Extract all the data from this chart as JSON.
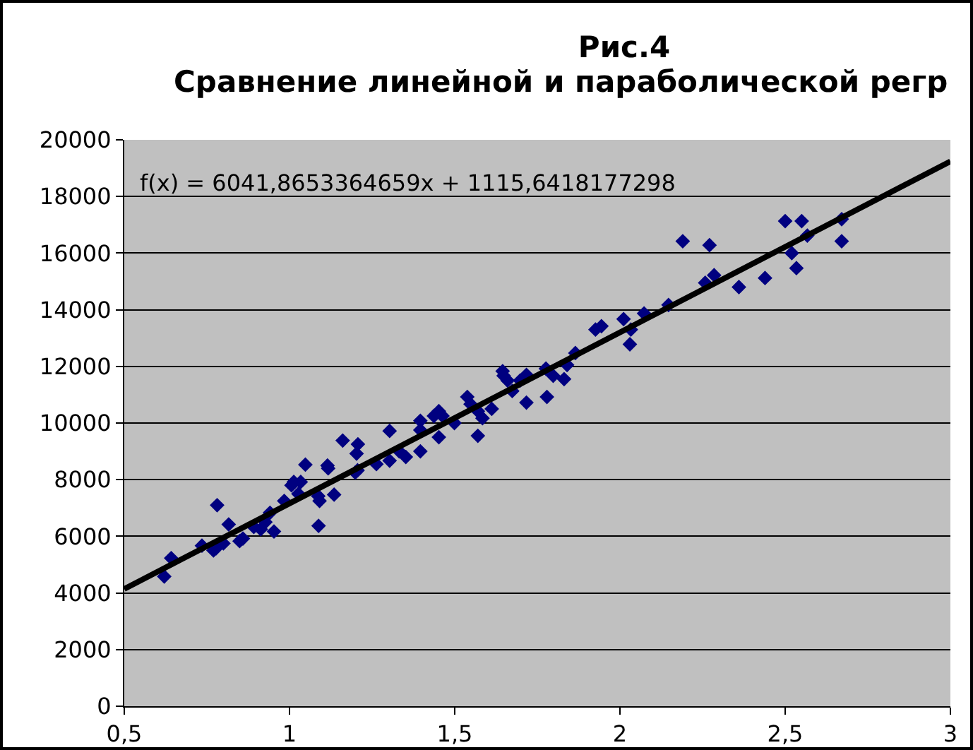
{
  "chart_data": {
    "type": "scatter",
    "title": "Рис.4",
    "subtitle": "Сравнение линейной и параболической регр",
    "annotations": [
      "f(x) = 6041,8653364659x + 1115,6418177298"
    ],
    "xlim": [
      0.5,
      3
    ],
    "xticks": [
      {
        "value": 0.5,
        "label": "0,5"
      },
      1,
      {
        "value": 1.5,
        "label": "1,5"
      },
      2,
      {
        "value": 2.5,
        "label": "2,5"
      },
      3
    ],
    "ylim": [
      0,
      20000
    ],
    "yticks": [
      0,
      2000,
      4000,
      6000,
      8000,
      10000,
      12000,
      14000,
      16000,
      18000,
      20000
    ],
    "grid": "y",
    "series": [
      {
        "color": "#000080",
        "marker": "diamond",
        "x": [
          0.621,
          0.642,
          0.735,
          0.77,
          0.778,
          0.781,
          0.8,
          0.816,
          0.849,
          0.859,
          0.892,
          0.913,
          0.927,
          0.941,
          0.953,
          0.984,
          1.006,
          1.013,
          1.027,
          1.034,
          1.048,
          1.087,
          1.091,
          1.088,
          1.115,
          1.117,
          1.135,
          1.161,
          1.199,
          1.203,
          1.206,
          1.207,
          1.263,
          1.303,
          1.303,
          1.332,
          1.352,
          1.396,
          1.396,
          1.396,
          1.437,
          1.452,
          1.452,
          1.463,
          1.499,
          1.538,
          1.548,
          1.57,
          1.57,
          1.584,
          1.612,
          1.645,
          1.648,
          1.66,
          1.674,
          1.698,
          1.717,
          1.717,
          1.776,
          1.779,
          1.798,
          1.831,
          1.84,
          1.865,
          1.926,
          1.944,
          2.011,
          2.033,
          2.03,
          2.073,
          2.147,
          2.19,
          2.258,
          2.271,
          2.285,
          2.36,
          2.439,
          2.5,
          2.52,
          2.534,
          2.55,
          2.567,
          2.671,
          2.671
        ],
        "values": [
          4580,
          5230,
          5670,
          5500,
          5580,
          7100,
          5750,
          6420,
          5830,
          5920,
          6330,
          6250,
          6500,
          6830,
          6170,
          7250,
          7800,
          7920,
          7500,
          7920,
          8530,
          7420,
          7250,
          6370,
          8500,
          8400,
          7470,
          9380,
          8250,
          8920,
          8330,
          9250,
          8550,
          9720,
          8670,
          9000,
          8800,
          10080,
          9750,
          9000,
          10250,
          10420,
          9500,
          10250,
          10000,
          10920,
          10670,
          10420,
          9550,
          10170,
          10500,
          11830,
          11670,
          11500,
          11130,
          11500,
          11700,
          10720,
          11920,
          10920,
          11670,
          11550,
          12050,
          12470,
          13300,
          13420,
          13670,
          13300,
          12780,
          13870,
          14170,
          16420,
          14950,
          16280,
          15220,
          14800,
          15120,
          17130,
          16000,
          15470,
          17130,
          16620,
          17200,
          16420
        ]
      },
      {
        "type": "line",
        "color": "#000000",
        "marker": "none",
        "x": [
          0.5,
          3
        ],
        "values": [
          4140,
          19240
        ]
      }
    ]
  }
}
